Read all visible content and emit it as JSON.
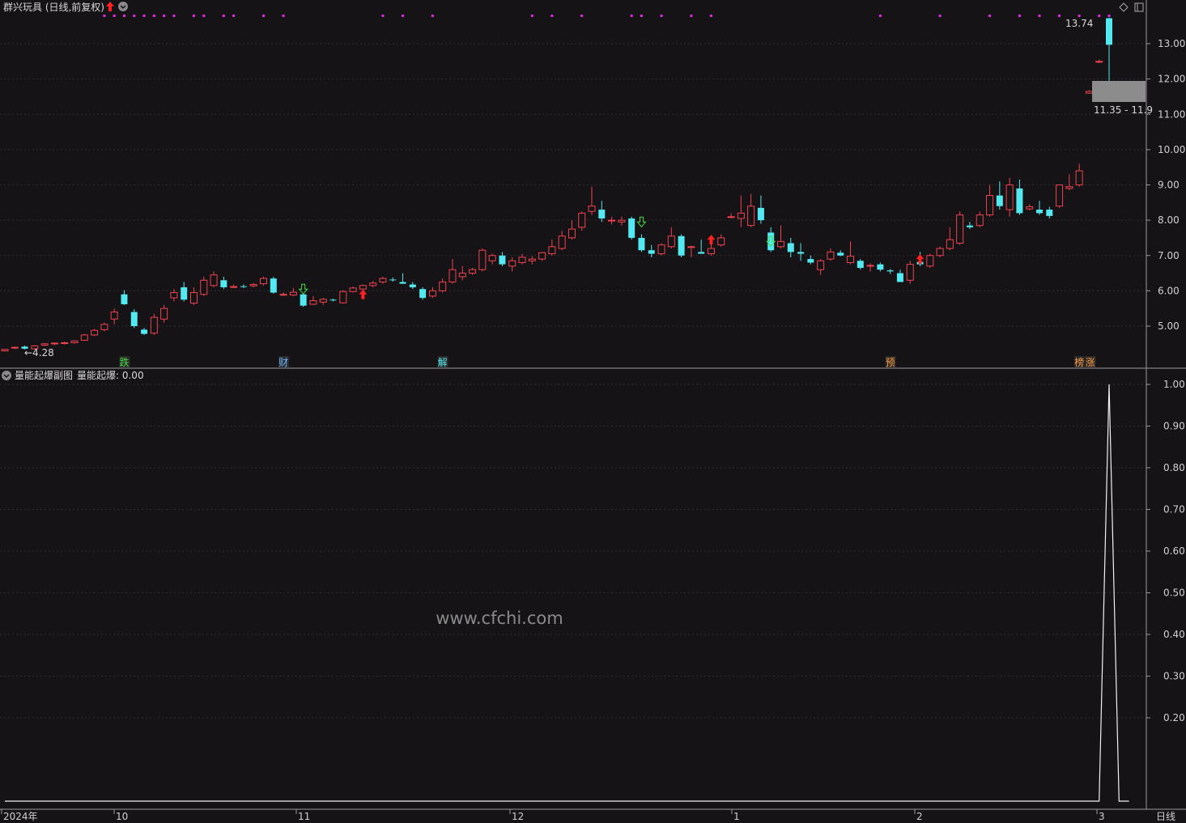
{
  "header": {
    "stock_title": "群兴玩具 (日线,前复权)",
    "indicator_title": "量能起爆副图",
    "indicator_value": "量能起爆: 0.00"
  },
  "watermark": "www.cfchi.com",
  "chart_data": [
    {
      "type": "candlestick",
      "y_ticks": [
        "13.00",
        "12.00",
        "11.00",
        "10.00",
        "9.00",
        "8.00",
        "7.00",
        "6.00",
        "5.00"
      ],
      "ylim": [
        4.0,
        14.0
      ],
      "annotations": {
        "low_label": "←4.28",
        "high_label": "13.74",
        "range_label": "11.35 - 11.9"
      },
      "event_tags": [
        "跌",
        "财",
        "解",
        "预",
        "榜",
        "涨"
      ],
      "ohlc": [
        [
          4.3,
          4.36,
          4.28,
          4.34
        ],
        [
          4.38,
          4.42,
          4.35,
          4.4
        ],
        [
          4.42,
          4.45,
          4.34,
          4.36
        ],
        [
          4.36,
          4.46,
          4.33,
          4.44
        ],
        [
          4.46,
          4.52,
          4.43,
          4.5
        ],
        [
          4.5,
          4.54,
          4.46,
          4.52
        ],
        [
          4.52,
          4.56,
          4.48,
          4.53
        ],
        [
          4.53,
          4.6,
          4.5,
          4.58
        ],
        [
          4.6,
          4.78,
          4.58,
          4.75
        ],
        [
          4.75,
          4.92,
          4.72,
          4.88
        ],
        [
          4.9,
          5.1,
          4.85,
          5.05
        ],
        [
          5.2,
          5.5,
          5.05,
          5.4
        ],
        [
          5.9,
          6.02,
          5.6,
          5.62
        ],
        [
          5.4,
          5.48,
          4.95,
          5.0
        ],
        [
          4.9,
          4.95,
          4.75,
          4.78
        ],
        [
          4.8,
          5.35,
          4.75,
          5.25
        ],
        [
          5.2,
          5.6,
          5.1,
          5.5
        ],
        [
          5.8,
          6.05,
          5.7,
          5.95
        ],
        [
          6.1,
          6.25,
          5.7,
          5.75
        ],
        [
          5.65,
          6.1,
          5.6,
          5.95
        ],
        [
          5.9,
          6.4,
          5.85,
          6.3
        ],
        [
          6.15,
          6.55,
          6.1,
          6.45
        ],
        [
          6.3,
          6.4,
          6.05,
          6.1
        ],
        [
          6.12,
          6.18,
          6.08,
          6.12
        ],
        [
          6.13,
          6.18,
          6.08,
          6.12
        ],
        [
          6.14,
          6.22,
          6.1,
          6.18
        ],
        [
          6.2,
          6.4,
          6.15,
          6.35
        ],
        [
          6.35,
          6.4,
          5.92,
          5.95
        ],
        [
          5.9,
          5.96,
          5.86,
          5.9
        ],
        [
          5.88,
          6.08,
          5.85,
          5.96
        ],
        [
          5.9,
          5.93,
          5.55,
          5.58
        ],
        [
          5.62,
          5.85,
          5.6,
          5.72
        ],
        [
          5.68,
          5.8,
          5.6,
          5.76
        ],
        [
          5.75,
          5.78,
          5.7,
          5.74
        ],
        [
          5.66,
          6.02,
          5.64,
          5.98
        ],
        [
          5.98,
          6.12,
          5.95,
          6.08
        ],
        [
          6.05,
          6.18,
          6.0,
          6.15
        ],
        [
          6.15,
          6.28,
          6.1,
          6.22
        ],
        [
          6.25,
          6.4,
          6.2,
          6.35
        ],
        [
          6.32,
          6.38,
          6.26,
          6.3
        ],
        [
          6.25,
          6.5,
          6.2,
          6.2
        ],
        [
          6.18,
          6.25,
          6.05,
          6.1
        ],
        [
          6.05,
          6.1,
          5.75,
          5.8
        ],
        [
          5.85,
          6.1,
          5.8,
          6.0
        ],
        [
          6.0,
          6.35,
          5.95,
          6.25
        ],
        [
          6.25,
          6.9,
          6.2,
          6.6
        ],
        [
          6.4,
          6.7,
          6.3,
          6.5
        ],
        [
          6.5,
          6.65,
          6.45,
          6.6
        ],
        [
          6.6,
          7.2,
          6.55,
          7.15
        ],
        [
          6.85,
          7.05,
          6.75,
          7.0
        ],
        [
          7.0,
          7.1,
          6.7,
          6.75
        ],
        [
          6.7,
          6.95,
          6.55,
          6.85
        ],
        [
          6.8,
          7.05,
          6.75,
          6.95
        ],
        [
          6.85,
          6.98,
          6.75,
          6.9
        ],
        [
          6.9,
          7.1,
          6.85,
          7.08
        ],
        [
          7.05,
          7.45,
          7.0,
          7.25
        ],
        [
          7.2,
          7.7,
          7.15,
          7.55
        ],
        [
          7.5,
          8.0,
          7.45,
          7.75
        ],
        [
          7.8,
          8.25,
          7.7,
          8.2
        ],
        [
          8.25,
          8.95,
          8.15,
          8.4
        ],
        [
          8.3,
          8.55,
          7.95,
          8.05
        ],
        [
          8.0,
          8.1,
          7.88,
          8.0
        ],
        [
          7.95,
          8.1,
          7.85,
          8.0
        ],
        [
          8.05,
          8.1,
          7.45,
          7.5
        ],
        [
          7.5,
          7.6,
          7.1,
          7.15
        ],
        [
          7.15,
          7.3,
          6.95,
          7.05
        ],
        [
          7.05,
          7.35,
          7.0,
          7.3
        ],
        [
          7.25,
          7.8,
          7.2,
          7.55
        ],
        [
          7.55,
          7.6,
          6.95,
          7.0
        ],
        [
          7.25,
          7.28,
          6.95,
          7.25
        ],
        [
          7.1,
          7.45,
          7.05,
          7.05
        ],
        [
          7.05,
          7.4,
          7.0,
          7.2
        ],
        [
          7.3,
          7.6,
          7.25,
          7.5
        ],
        [
          8.1,
          8.2,
          8.05,
          8.1
        ],
        [
          8.05,
          8.7,
          7.8,
          8.2
        ],
        [
          7.85,
          8.75,
          7.8,
          8.4
        ],
        [
          8.35,
          8.7,
          7.9,
          8.0
        ],
        [
          7.65,
          7.8,
          7.1,
          7.15
        ],
        [
          7.25,
          7.85,
          7.2,
          7.4
        ],
        [
          7.35,
          7.5,
          6.95,
          7.1
        ],
        [
          7.1,
          7.35,
          6.85,
          7.05
        ],
        [
          6.9,
          7.0,
          6.75,
          6.8
        ],
        [
          6.6,
          6.9,
          6.45,
          6.85
        ],
        [
          6.9,
          7.2,
          6.85,
          7.1
        ],
        [
          7.08,
          7.15,
          6.98,
          7.0
        ],
        [
          6.8,
          7.4,
          6.75,
          6.98
        ],
        [
          6.85,
          6.9,
          6.6,
          6.65
        ],
        [
          6.72,
          6.78,
          6.55,
          6.72
        ],
        [
          6.75,
          6.8,
          6.55,
          6.6
        ],
        [
          6.58,
          6.62,
          6.48,
          6.55
        ],
        [
          6.5,
          6.6,
          6.25,
          6.25
        ],
        [
          6.3,
          6.85,
          6.2,
          6.75
        ],
        [
          6.82,
          7.1,
          6.7,
          6.75
        ],
        [
          6.7,
          7.05,
          6.65,
          7.0
        ],
        [
          7.0,
          7.25,
          6.95,
          7.2
        ],
        [
          7.2,
          7.8,
          7.15,
          7.45
        ],
        [
          7.35,
          8.25,
          7.3,
          8.15
        ],
        [
          7.85,
          7.95,
          7.75,
          7.8
        ],
        [
          7.85,
          8.25,
          7.8,
          8.15
        ],
        [
          8.15,
          9.0,
          8.1,
          8.7
        ],
        [
          8.7,
          9.1,
          8.3,
          8.4
        ],
        [
          8.3,
          9.2,
          8.1,
          9.0
        ],
        [
          8.9,
          9.15,
          8.15,
          8.2
        ],
        [
          8.32,
          8.45,
          8.28,
          8.38
        ],
        [
          8.3,
          8.55,
          8.15,
          8.2
        ],
        [
          8.3,
          8.38,
          8.05,
          8.12
        ],
        [
          8.4,
          9.0,
          8.35,
          9.0
        ],
        [
          8.9,
          9.3,
          8.85,
          8.95
        ],
        [
          9.0,
          9.6,
          8.95,
          9.4
        ],
        [
          11.6,
          11.68,
          11.58,
          11.65
        ],
        [
          12.5,
          12.55,
          12.45,
          12.5
        ],
        [
          13.72,
          13.74,
          11.95,
          12.97
        ]
      ]
    },
    {
      "type": "line",
      "name": "量能起爆",
      "y_ticks": [
        "1.00",
        "0.90",
        "0.80",
        "0.70",
        "0.60",
        "0.50",
        "0.40",
        "0.30",
        "0.20"
      ],
      "ylim": [
        0,
        1
      ],
      "x_labels": [
        "2024年",
        "10",
        "11",
        "12",
        "1",
        "2",
        "3"
      ],
      "period_label": "日线",
      "values": [
        0,
        0,
        0,
        0,
        0,
        0,
        0,
        0,
        0,
        0,
        0,
        0,
        0,
        0,
        0,
        0,
        0,
        0,
        0,
        0,
        0,
        0,
        0,
        0,
        0,
        0,
        0,
        0,
        0,
        0,
        0,
        0,
        0,
        0,
        0,
        0,
        0,
        0,
        0,
        0,
        0,
        0,
        0,
        0,
        0,
        0,
        0,
        0,
        0,
        0,
        0,
        0,
        0,
        0,
        0,
        0,
        0,
        0,
        0,
        0,
        0,
        0,
        0,
        0,
        0,
        0,
        0,
        0,
        0,
        0,
        0,
        0,
        0,
        0,
        0,
        0,
        0,
        0,
        0,
        0,
        0,
        0,
        0,
        0,
        0,
        0,
        0,
        0,
        0,
        0,
        0,
        0,
        0,
        0,
        0,
        0,
        0,
        0,
        0,
        0,
        0,
        0,
        0,
        0,
        0,
        0,
        0,
        0,
        0,
        0,
        0,
        1,
        0,
        0
      ]
    }
  ]
}
